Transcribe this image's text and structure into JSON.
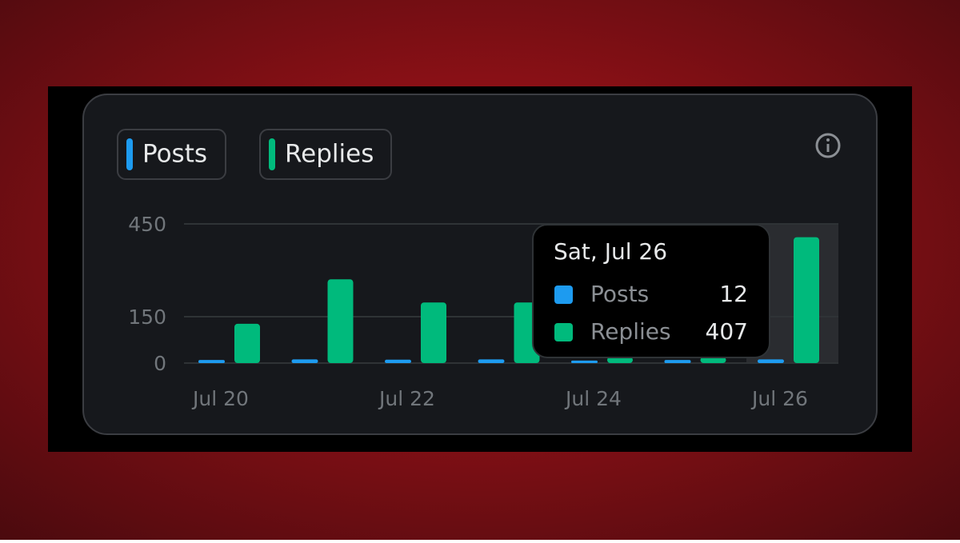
{
  "chart_data": {
    "type": "bar",
    "categories": [
      "Jul 20",
      null,
      "Jul 22",
      null,
      "Jul 24",
      null,
      "Jul 26"
    ],
    "series": [
      {
        "name": "Posts",
        "color": "#1d9bf0",
        "values": [
          10,
          12,
          11,
          12,
          8,
          10,
          12
        ]
      },
      {
        "name": "Replies",
        "color": "#00ba7c",
        "values": [
          127,
          271,
          196,
          196,
          20,
          20,
          407
        ]
      }
    ],
    "ylim": [
      0,
      450
    ],
    "yticks": [
      0,
      150,
      450
    ],
    "grid": true,
    "tooltip": {
      "title": "Sat, Jul 26"
    }
  }
}
